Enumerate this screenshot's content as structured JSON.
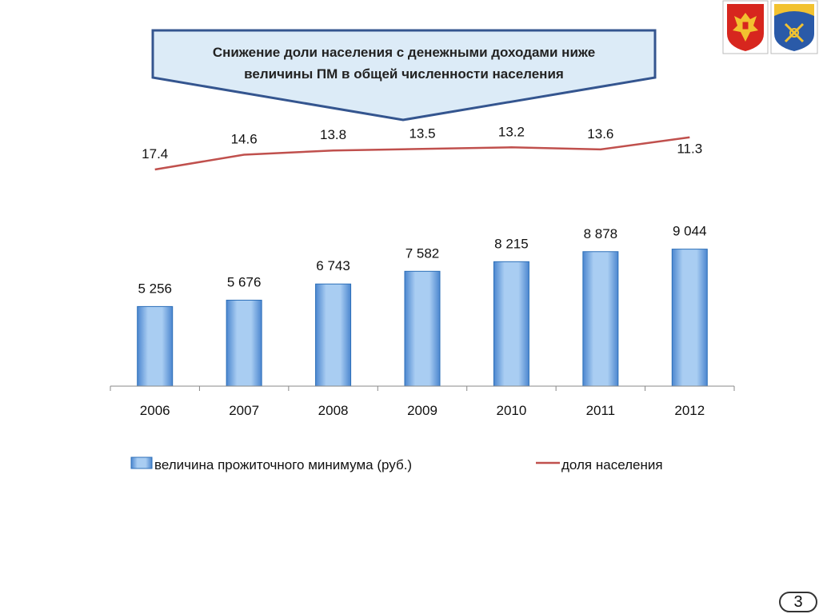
{
  "header": {
    "title_line1": "Снижение доли населения с денежными доходами ниже",
    "title_line2": "величины ПМ в общей численности населения",
    "emblems": [
      "russia-coat-of-arms-icon",
      "murmansk-region-coat-of-arms-icon"
    ]
  },
  "colors": {
    "bar": "#8fb9e8",
    "bar_edge": "#2c6fb8",
    "line": "#c0504d",
    "callout_fill": "#dcebf7",
    "callout_border": "#34558f"
  },
  "chart_data": {
    "type": "bar",
    "categories": [
      "2006",
      "2007",
      "2008",
      "2009",
      "2010",
      "2011",
      "2012"
    ],
    "series": [
      {
        "name": "величина прожиточного минимума (руб.)",
        "kind": "bar",
        "values": [
          5256,
          5676,
          6743,
          7582,
          8215,
          8878,
          9044
        ],
        "labels": [
          "5 256",
          "5 676",
          "6 743",
          "7 582",
          "8 215",
          "8 878",
          "9 044"
        ]
      },
      {
        "name": "доля населения",
        "kind": "line",
        "values": [
          17.4,
          14.6,
          13.8,
          13.5,
          13.2,
          13.6,
          11.3
        ],
        "labels": [
          "17.4",
          "14.6",
          "13.8",
          "13.5",
          "13.2",
          "13.6",
          "11.3"
        ]
      }
    ],
    "legend_position": "bottom",
    "grid": false
  },
  "footer": {
    "page_number": "3"
  }
}
